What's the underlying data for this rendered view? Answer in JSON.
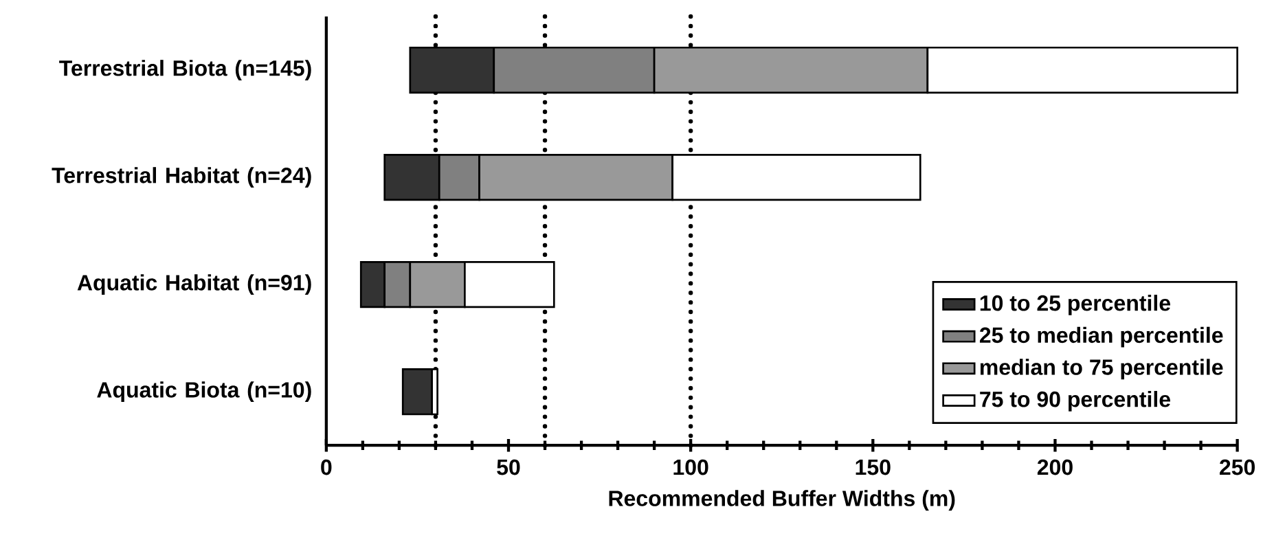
{
  "chart_data": {
    "type": "bar",
    "orientation": "horizontal",
    "xlabel": "Recommended Buffer Widths (m)",
    "categories": [
      "Terrestrial Biota (n=145)",
      "Terrestrial Habitat (n=24)",
      "Aquatic Habitat (n=91)",
      "Aquatic Biota (n=10)"
    ],
    "series": [
      {
        "name": "10 to 25 percentile",
        "color": "#333333",
        "base": [
          23,
          16,
          9.5,
          21
        ],
        "values": [
          23,
          15,
          6.5,
          8
        ]
      },
      {
        "name": "25 to median percentile",
        "color": "#808080",
        "base": [
          46,
          31,
          16,
          null
        ],
        "values": [
          44,
          11,
          7,
          null
        ]
      },
      {
        "name": "median to 75 percentile",
        "color": "#999999",
        "base": [
          90,
          42,
          23,
          null
        ],
        "values": [
          75,
          53,
          15,
          null
        ]
      },
      {
        "name": "75 to 90 percentile",
        "color": "#ffffff",
        "base": [
          165,
          95,
          38,
          29
        ],
        "values": [
          85,
          68,
          24.5,
          1.5
        ]
      }
    ],
    "xlim": [
      0,
      250
    ],
    "xticks": [
      0,
      50,
      100,
      150,
      200,
      250
    ],
    "ref_lines": [
      {
        "axis": "x",
        "value": 30,
        "color": "#000000",
        "line_style": "dotted"
      },
      {
        "axis": "x",
        "value": 60,
        "color": "#000000",
        "line_style": "dotted"
      },
      {
        "axis": "x",
        "value": 100,
        "color": "#000000",
        "line_style": "dotted"
      }
    ],
    "legend": "bottom right",
    "grid": false
  }
}
